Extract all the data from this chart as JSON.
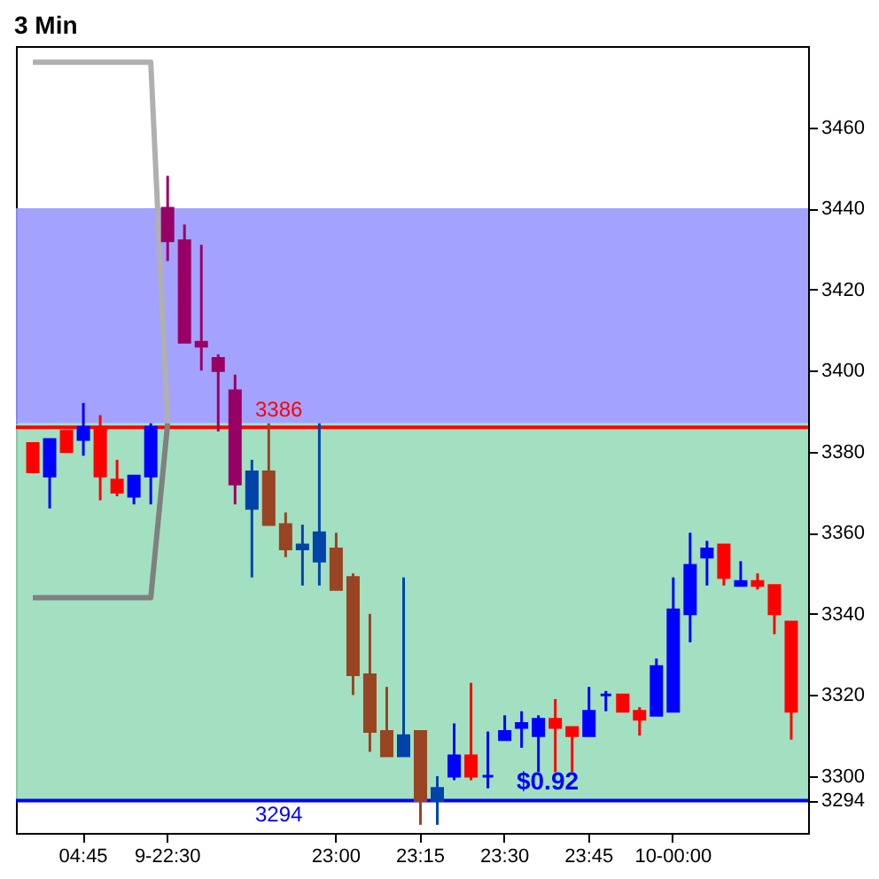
{
  "chart_data": {
    "type": "candlestick",
    "title": "3 Min",
    "categories": [
      null,
      null,
      null,
      "04:45",
      null,
      null,
      null,
      null,
      "9-22:30",
      null,
      null,
      null,
      null,
      null,
      null,
      null,
      null,
      null,
      "23:00",
      null,
      null,
      null,
      null,
      "23:15",
      null,
      null,
      null,
      null,
      "23:30",
      null,
      null,
      null,
      null,
      "23:45",
      null,
      null,
      null,
      null,
      "10-00:00",
      null,
      null,
      null,
      null,
      null,
      null,
      null
    ],
    "ohlc": [
      [
        3382,
        3382,
        3375,
        3375
      ],
      [
        3374,
        3383,
        3366,
        3383
      ],
      [
        3385,
        3385,
        3380,
        3380
      ],
      [
        3383,
        3392,
        3379,
        3386
      ],
      [
        3386,
        3389,
        3368,
        3374
      ],
      [
        3373,
        3378,
        3369,
        3370
      ],
      [
        3369,
        3374,
        3367,
        3374
      ],
      [
        3374,
        3387,
        3367,
        3386
      ],
      [
        3440,
        3448,
        3427,
        3432
      ],
      [
        3432,
        3436,
        3407,
        3407
      ],
      [
        3407,
        3431,
        3400,
        3406
      ],
      [
        3403,
        3404,
        3385,
        3400
      ],
      [
        3395,
        3399,
        3367,
        3372
      ],
      [
        3366,
        3378,
        3349,
        3375
      ],
      [
        3375,
        3387,
        3362,
        3362
      ],
      [
        3362,
        3365,
        3354,
        3356
      ],
      [
        3356,
        3362,
        3347,
        3357
      ],
      [
        3353,
        3387,
        3347,
        3360
      ],
      [
        3356,
        3360,
        3346,
        3346
      ],
      [
        3349,
        3350,
        3320,
        3325
      ],
      [
        3325,
        3340,
        3306,
        3311
      ],
      [
        3311,
        3322,
        3305,
        3305
      ],
      [
        3305,
        3349,
        3305,
        3310
      ],
      [
        3311,
        3311,
        3288,
        3294
      ],
      [
        3294,
        3300,
        3288,
        3297
      ],
      [
        3300,
        3313,
        3299,
        3305
      ],
      [
        3305,
        3323,
        3299,
        3300
      ],
      [
        3300,
        3311,
        3297,
        3300
      ],
      [
        3309,
        3315,
        3309,
        3311
      ],
      [
        3312,
        3316,
        3307,
        3313
      ],
      [
        3310,
        3315,
        3301,
        3314
      ],
      [
        3314,
        3319,
        3301,
        3312
      ],
      [
        3312,
        3312,
        3301,
        3310
      ],
      [
        3310,
        3322,
        3310,
        3316
      ],
      [
        3320,
        3321,
        3316,
        3320
      ],
      [
        3320,
        3320,
        3316,
        3316
      ],
      [
        3316,
        3317,
        3310,
        3314
      ],
      [
        3315,
        3329,
        3315,
        3327
      ],
      [
        3316,
        3349,
        3316,
        3341
      ],
      [
        3340,
        3360,
        3333,
        3352
      ],
      [
        3354,
        3358,
        3347,
        3356
      ],
      [
        3357,
        3357,
        3347,
        3349
      ],
      [
        3347,
        3353,
        3347,
        3348
      ],
      [
        3348,
        3350,
        3346,
        3347
      ],
      [
        3347,
        3347,
        3335,
        3340
      ],
      [
        3338,
        3338,
        3309,
        3316
      ]
    ],
    "colors": [
      "#ff0000",
      "#0000ff",
      "#ff0000",
      "#0000ff",
      "#ff0000",
      "#ff0000",
      "#0000ff",
      "#0000ff",
      "#990066",
      "#990066",
      "#990066",
      "#990066",
      "#990066",
      "#0044aa",
      "#994422",
      "#994422",
      "#0044aa",
      "#0044aa",
      "#994422",
      "#994422",
      "#994422",
      "#994422",
      "#0044aa",
      "#994422",
      "#0044aa",
      "#0000ff",
      "#ff0000",
      "#0000ff",
      "#0000ff",
      "#0000ff",
      "#0000ff",
      "#ff0000",
      "#ff0000",
      "#0000ff",
      "#0000ff",
      "#ff0000",
      "#ff0000",
      "#0000ff",
      "#0000ff",
      "#0000ff",
      "#0000ff",
      "#ff0000",
      "#0000ff",
      "#ff0000",
      "#ff0000",
      "#ff0000"
    ],
    "series": [
      {
        "type": "line",
        "color": "#b0b0b0",
        "values": [
          3476,
          3476,
          3476,
          3476,
          3476,
          3476,
          3476,
          3476,
          3387,
          null,
          null,
          null,
          null,
          null,
          null,
          null,
          null,
          null,
          null,
          null,
          null,
          null,
          null,
          null,
          null,
          null,
          null,
          null,
          null,
          null,
          null,
          null,
          null,
          null,
          null,
          null,
          null,
          null,
          null,
          null,
          null,
          null,
          null,
          null,
          null,
          null
        ]
      },
      {
        "type": "line",
        "color": "#808080",
        "values": [
          3344,
          3344,
          3344,
          3344,
          3344,
          3344,
          3344,
          3344,
          3387,
          null,
          null,
          null,
          null,
          null,
          null,
          null,
          null,
          null,
          null,
          null,
          null,
          null,
          null,
          null,
          null,
          null,
          null,
          null,
          null,
          null,
          null,
          null,
          null,
          null,
          null,
          null,
          null,
          null,
          null,
          null,
          null,
          null,
          null,
          null,
          null,
          null
        ]
      }
    ],
    "ylim": [
      3286,
      3480
    ],
    "yticks": [
      {
        "value": 3294,
        "label": "3294"
      },
      3300,
      3320,
      3340,
      3360,
      3380,
      3400,
      3420,
      {
        "value": 3440,
        "label": "3440"
      },
      3460
    ],
    "bands": [
      {
        "axis": "y",
        "from": 3387,
        "to": 3440,
        "color": "#9999ff"
      },
      {
        "axis": "y",
        "from": 3294,
        "to": 3387,
        "color": "#99ddbb"
      }
    ],
    "ref_lines": [
      {
        "axis": "y",
        "value": 3386,
        "label": "3386",
        "color": "#ff0000"
      },
      {
        "axis": "y",
        "value": 3294,
        "label": "3294",
        "color": "#0000ff"
      }
    ],
    "annotations": [
      {
        "text": "$0.92",
        "y": 3294
      }
    ],
    "grid": false
  }
}
